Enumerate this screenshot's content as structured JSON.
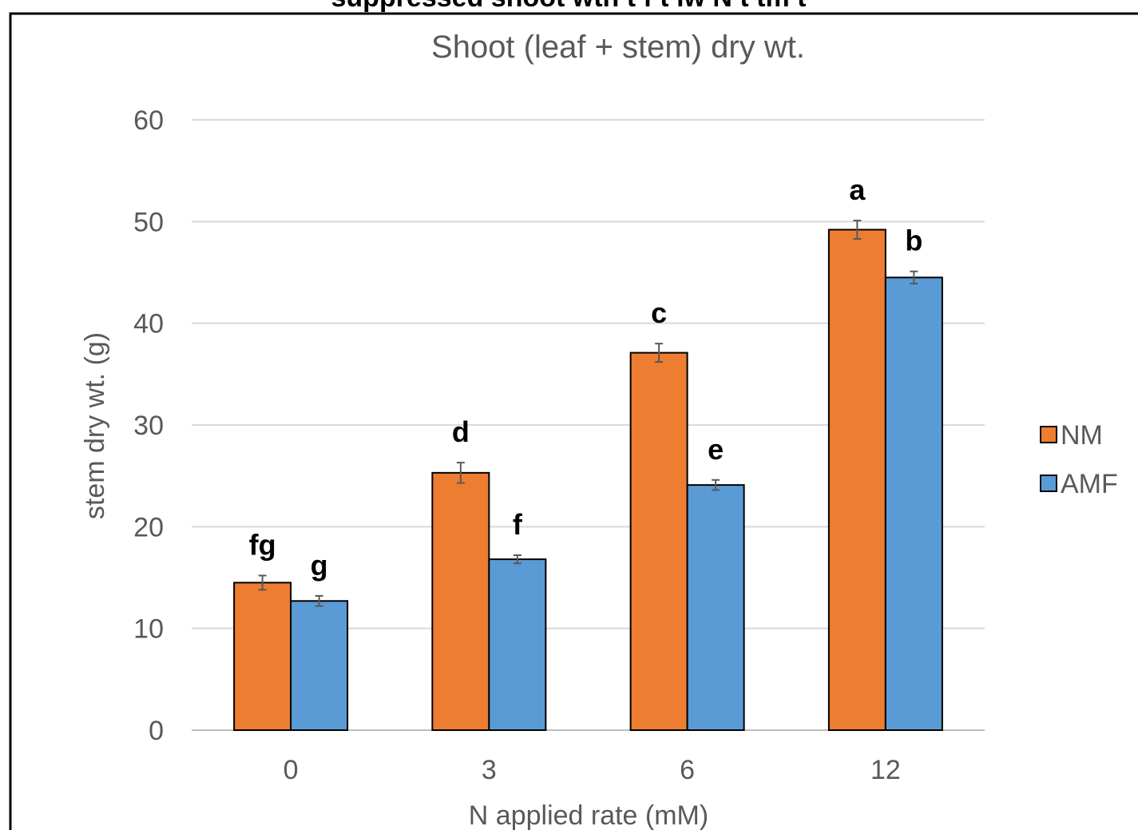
{
  "chart_data": {
    "type": "bar",
    "top_caption": "suppressed shoot   wth  t  f        t lw  N  t   tm  t",
    "title": "Shoot (leaf + stem) dry wt.",
    "xlabel": "N applied rate (mM)",
    "ylabel": "stem dry wt. (g)",
    "ylim": [
      0,
      60
    ],
    "yticks": [
      0,
      10,
      20,
      30,
      40,
      50,
      60
    ],
    "grid": true,
    "legend_position": "right",
    "categories": [
      "0",
      "3",
      "6",
      "12"
    ],
    "series": [
      {
        "name": "NM",
        "color": "#ed7d31",
        "values": [
          14.5,
          25.3,
          37.1,
          49.2
        ],
        "errors": [
          0.7,
          1.0,
          0.9,
          0.9
        ],
        "letters": [
          "fg",
          "d",
          "c",
          "a"
        ]
      },
      {
        "name": "AMF",
        "color": "#5b9bd5",
        "values": [
          12.7,
          16.8,
          24.1,
          44.5
        ],
        "errors": [
          0.5,
          0.4,
          0.5,
          0.6
        ],
        "letters": [
          "g",
          "f",
          "e",
          "b"
        ]
      }
    ]
  }
}
